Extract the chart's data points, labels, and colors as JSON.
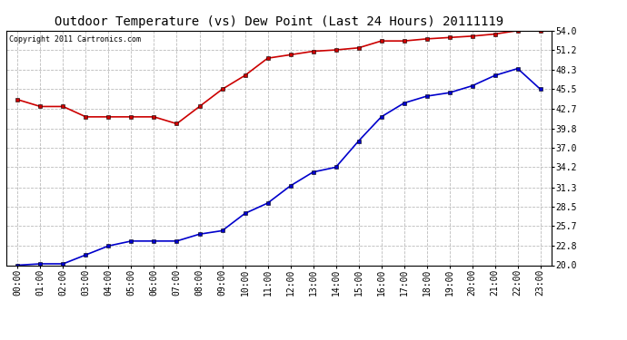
{
  "title": "Outdoor Temperature (vs) Dew Point (Last 24 Hours) 20111119",
  "copyright": "Copyright 2011 Cartronics.com",
  "x_labels": [
    "00:00",
    "01:00",
    "02:00",
    "03:00",
    "04:00",
    "05:00",
    "06:00",
    "07:00",
    "08:00",
    "09:00",
    "10:00",
    "11:00",
    "12:00",
    "13:00",
    "14:00",
    "15:00",
    "16:00",
    "17:00",
    "18:00",
    "19:00",
    "20:00",
    "21:00",
    "22:00",
    "23:00"
  ],
  "temp_data": [
    44.0,
    43.0,
    43.0,
    41.5,
    41.5,
    41.5,
    41.5,
    40.5,
    43.0,
    45.5,
    47.5,
    50.0,
    50.5,
    51.0,
    51.2,
    51.5,
    52.5,
    52.5,
    52.8,
    53.0,
    53.2,
    53.5,
    54.0,
    54.0
  ],
  "dew_data": [
    20.0,
    20.2,
    20.2,
    21.5,
    22.8,
    23.5,
    23.5,
    23.5,
    24.5,
    25.0,
    27.5,
    29.0,
    31.5,
    33.5,
    34.2,
    38.0,
    41.5,
    43.5,
    44.5,
    45.0,
    46.0,
    47.5,
    48.5,
    45.5
  ],
  "temp_color": "#cc0000",
  "dew_color": "#0000cc",
  "bg_color": "#ffffff",
  "grid_color": "#bbbbbb",
  "ylim_min": 20.0,
  "ylim_max": 54.0,
  "yticks": [
    20.0,
    22.8,
    25.7,
    28.5,
    31.3,
    34.2,
    37.0,
    39.8,
    42.7,
    45.5,
    48.3,
    51.2,
    54.0
  ],
  "title_fontsize": 10,
  "copyright_fontsize": 6,
  "tick_fontsize": 7,
  "marker_size": 3
}
